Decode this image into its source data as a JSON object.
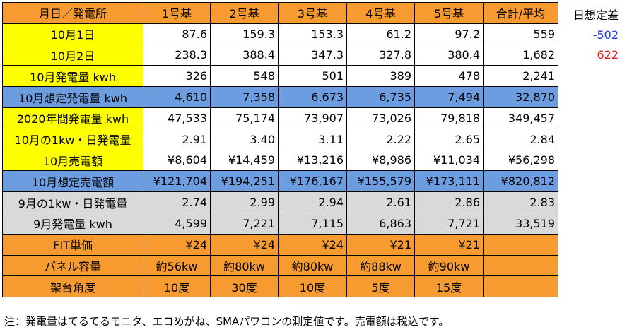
{
  "header": [
    "月日／発電所",
    "1号基",
    "2号基",
    "3号基",
    "4号基",
    "5号基",
    "合計/平均"
  ],
  "rows": [
    {
      "style": "white",
      "label": "10月1日",
      "cells": [
        "87.6",
        "159.3",
        "153.3",
        "61.2",
        "97.2",
        "559"
      ]
    },
    {
      "style": "white",
      "label": "10月2日",
      "cells": [
        "238.3",
        "388.4",
        "347.3",
        "327.8",
        "380.4",
        "1,682"
      ]
    },
    {
      "style": "white",
      "label": "10月発電量 kwh",
      "cells": [
        "326",
        "548",
        "501",
        "389",
        "478",
        "2,241"
      ]
    },
    {
      "style": "blue",
      "label": "10月想定発電量 kwh",
      "cells": [
        "4,610",
        "7,358",
        "6,673",
        "6,735",
        "7,494",
        "32,870"
      ]
    },
    {
      "style": "white",
      "label": "2020年間発電量 kwh",
      "cells": [
        "47,533",
        "75,174",
        "73,907",
        "73,026",
        "79,818",
        "349,457"
      ]
    },
    {
      "style": "white",
      "label": "10月の1kw・日発電量",
      "cells": [
        "2.91",
        "3.40",
        "3.11",
        "2.22",
        "2.65",
        "2.84"
      ]
    },
    {
      "style": "white",
      "label": "10月売電額",
      "cells": [
        "¥8,604",
        "¥14,459",
        "¥13,216",
        "¥8,986",
        "¥11,034",
        "¥56,298"
      ]
    },
    {
      "style": "blue",
      "label": "10月想定売電額",
      "cells": [
        "¥121,704",
        "¥194,251",
        "¥176,167",
        "¥155,579",
        "¥173,111",
        "¥820,812"
      ]
    },
    {
      "style": "gray",
      "label": "9月の1kw・日発電量",
      "cells": [
        "2.74",
        "2.99",
        "2.94",
        "2.61",
        "2.86",
        "2.83"
      ]
    },
    {
      "style": "gray",
      "label": "9月発電量 kwh",
      "cells": [
        "4,599",
        "7,221",
        "7,115",
        "6,863",
        "7,721",
        "33,519"
      ]
    },
    {
      "style": "orange",
      "label": "FIT単価",
      "cells": [
        "¥24",
        "¥24",
        "¥24",
        "¥21",
        "¥21",
        ""
      ]
    },
    {
      "style": "orange",
      "label": "パネル容量",
      "cells": [
        "約56kw",
        "約80kw",
        "約80kw",
        "約88kw",
        "約90kw",
        ""
      ],
      "center": true
    },
    {
      "style": "orange",
      "label": "架台角度",
      "cells": [
        "10度",
        "30度",
        "10度",
        "5度",
        "15度",
        ""
      ],
      "center": true
    }
  ],
  "side": {
    "title": "日想定差",
    "values": [
      "-502",
      "622"
    ],
    "colors": {
      "negative": "#1f3fd8",
      "positive": "#e0201c"
    }
  },
  "note": "注：発電量はてるてるモニタ、エコめがね、SMAパワコンの測定値です。売電額は税込です。"
}
